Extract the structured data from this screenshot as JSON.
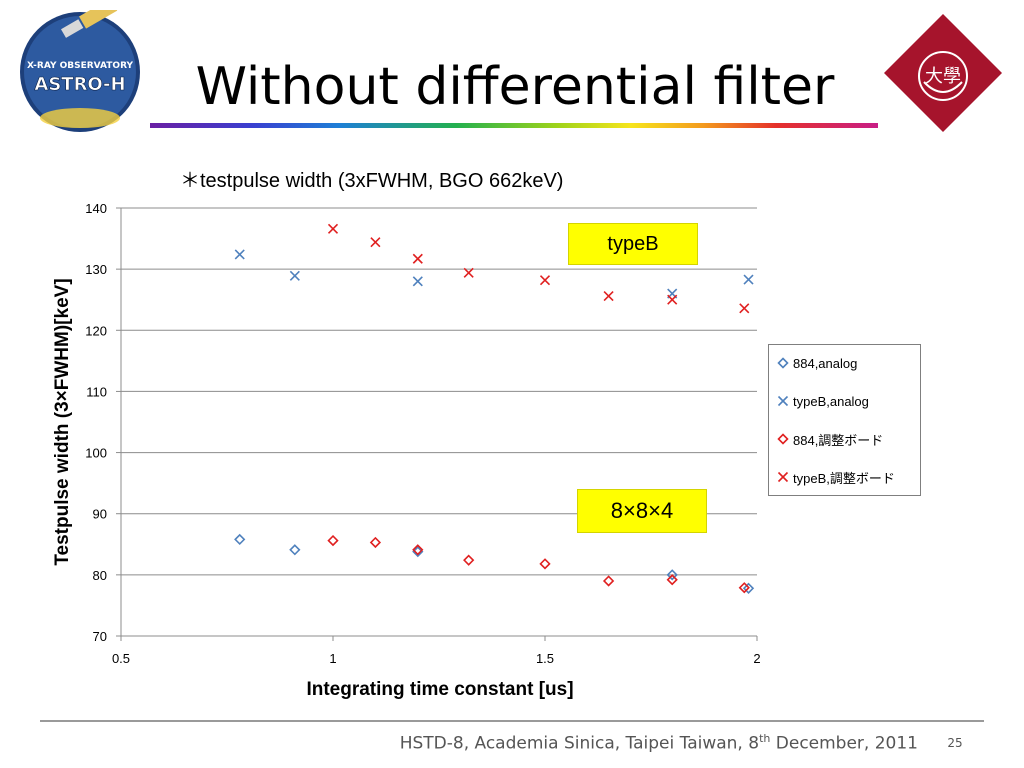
{
  "slide": {
    "title": "Without differential filter",
    "footer_text": "HSTD-8, Academia Sinica, Taipei Taiwan, 8",
    "footer_sup": "th",
    "footer_tail": " December, 2011",
    "page_number": "25",
    "logo_left_text_top": "X-RAY OBSERVATORY",
    "logo_left_text_main": "ASTRO-H",
    "logo_right_text": "大學"
  },
  "chart_data": {
    "type": "scatter",
    "title": "＊testpulse width (3xFWHM, BGO 662keV)",
    "xlabel": "Integrating time constant [us]",
    "ylabel": "Testpulse width (3×FWHM)[keV]",
    "xlim": [
      0.5,
      2
    ],
    "ylim": [
      70,
      140
    ],
    "xticks": [
      "0.5",
      "1",
      "1.5",
      "2"
    ],
    "yticks": [
      "70",
      "80",
      "90",
      "100",
      "110",
      "120",
      "130",
      "140"
    ],
    "grid": "horizontal",
    "legend_position": "right",
    "annotations": [
      "typeB",
      "8×8×4"
    ],
    "series": [
      {
        "name": "884,analog",
        "marker": "diamond",
        "color": "#4f81bd",
        "x": [
          0.78,
          0.91,
          1.2,
          1.8,
          1.98
        ],
        "y": [
          85.8,
          84.1,
          83.8,
          80.0,
          77.8
        ]
      },
      {
        "name": "typeB,analog",
        "marker": "x",
        "color": "#4f81bd",
        "x": [
          0.78,
          0.91,
          1.2,
          1.8,
          1.98
        ],
        "y": [
          132.4,
          128.9,
          128.0,
          126.0,
          128.3
        ]
      },
      {
        "name": "884,調整ボード",
        "marker": "diamond",
        "color": "#e02020",
        "x": [
          1.0,
          1.1,
          1.2,
          1.32,
          1.5,
          1.65,
          1.8,
          1.97
        ],
        "y": [
          85.6,
          85.3,
          84.1,
          82.4,
          81.8,
          79.0,
          79.2,
          77.9
        ]
      },
      {
        "name": "typeB,調整ボード",
        "marker": "x",
        "color": "#e02020",
        "x": [
          1.0,
          1.1,
          1.2,
          1.32,
          1.5,
          1.65,
          1.8,
          1.97
        ],
        "y": [
          136.6,
          134.4,
          131.7,
          129.4,
          128.2,
          125.6,
          125.0,
          123.6
        ]
      }
    ]
  }
}
